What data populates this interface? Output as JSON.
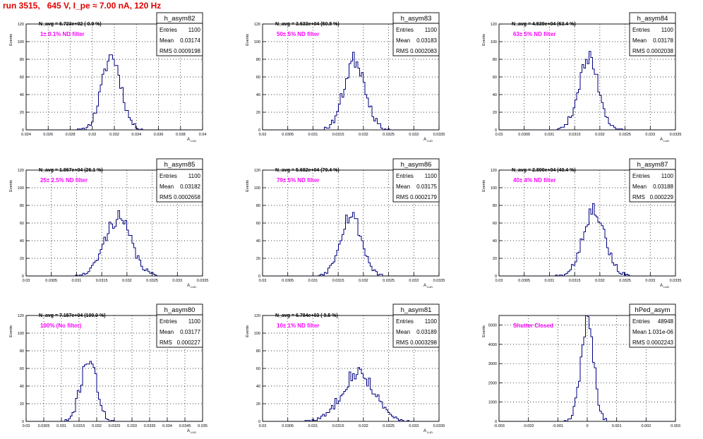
{
  "title": "run 3515,   645 V, I_pe ≈ 7.00 nA, 120 Hz",
  "stats_labels": {
    "entries": "Entries",
    "mean": "Mean",
    "rms": "RMS"
  },
  "colors": {
    "title": "#e00000",
    "annotation": "#ff00ff",
    "histogram": "#000080",
    "frame": "#000000",
    "grid": "#000000"
  },
  "chart_data": [
    {
      "type": "histogram",
      "name": "h_asym82",
      "navg": "N_avg = 6.723e+02 ( 0.9 %)",
      "annotation": "1± 0.1% ND filter",
      "entries": "1100",
      "mean": "0.03174",
      "rms": "0.0009198",
      "ylabel": "Events",
      "xlabel": "A_LUD",
      "xlim": [
        0.024,
        0.04
      ],
      "ylim": [
        0,
        120
      ],
      "xticks": [
        "0.024",
        "0.026",
        "0.028",
        "0.03",
        "0.032",
        "0.034",
        "0.036",
        "0.038",
        "0.04"
      ],
      "yticks": [
        "0",
        "20",
        "40",
        "60",
        "80",
        "100",
        "120"
      ],
      "gauss": {
        "mu": 0.03174,
        "sigma": 0.00087,
        "peak": 84
      },
      "seed": 11,
      "grid": true
    },
    {
      "type": "histogram",
      "name": "h_asym83",
      "navg": "N_avg = 3.633e+04 (50.8 %)",
      "annotation": "50± 5% ND filter",
      "entries": "1100",
      "mean": "0.03183",
      "rms": "0.0002083",
      "ylabel": "Events",
      "xlabel": "A_LUD",
      "xlim": [
        0.03,
        0.0335
      ],
      "ylim": [
        0,
        120
      ],
      "xticks": [
        "0.03",
        "0.0305",
        "0.031",
        "0.0315",
        "0.032",
        "0.0325",
        "0.033",
        "0.0335"
      ],
      "yticks": [
        "0",
        "20",
        "40",
        "60",
        "80",
        "100",
        "120"
      ],
      "gauss": {
        "mu": 0.03183,
        "sigma": 0.00021,
        "peak": 80
      },
      "seed": 23,
      "grid": true
    },
    {
      "type": "histogram",
      "name": "h_asym84",
      "navg": "N_avg = 4.539e+04 (63.4 %)",
      "annotation": "63± 5% ND filter",
      "entries": "1100",
      "mean": "0.03178",
      "rms": "0.0002038",
      "ylabel": "Events",
      "xlabel": "A_LUD",
      "xlim": [
        0.03,
        0.0335
      ],
      "ylim": [
        0,
        120
      ],
      "xticks": [
        "0.03",
        "0.0305",
        "0.031",
        "0.0315",
        "0.032",
        "0.0325",
        "0.033",
        "0.0335"
      ],
      "yticks": [
        "0",
        "20",
        "40",
        "60",
        "80",
        "100",
        "120"
      ],
      "gauss": {
        "mu": 0.03178,
        "sigma": 0.0002,
        "peak": 80
      },
      "seed": 37,
      "grid": true
    },
    {
      "type": "histogram",
      "name": "h_asym85",
      "navg": "N_avg = 1.867e+04 (26.1 %)",
      "annotation": "25± 2.5% ND filter",
      "entries": "1100",
      "mean": "0.03182",
      "rms": "0.0002658",
      "ylabel": "Events",
      "xlabel": "A_LUD",
      "xlim": [
        0.03,
        0.0335
      ],
      "ylim": [
        0,
        120
      ],
      "xticks": [
        "0.03",
        "0.0305",
        "0.031",
        "0.0315",
        "0.032",
        "0.0325",
        "0.033",
        "0.0335"
      ],
      "yticks": [
        "0",
        "20",
        "40",
        "60",
        "80",
        "100",
        "120"
      ],
      "gauss": {
        "mu": 0.03182,
        "sigma": 0.00026,
        "peak": 66
      },
      "seed": 41,
      "grid": true
    },
    {
      "type": "histogram",
      "name": "h_asym86",
      "navg": "N_avg = 5.682e+04 (79.4 %)",
      "annotation": "79± 5% ND filter",
      "entries": "1100",
      "mean": "0.03175",
      "rms": "0.0002179",
      "ylabel": "Events",
      "xlabel": "A_LUD",
      "xlim": [
        0.03,
        0.0335
      ],
      "ylim": [
        0,
        120
      ],
      "xticks": [
        "0.03",
        "0.0305",
        "0.031",
        "0.0315",
        "0.032",
        "0.0325",
        "0.033",
        "0.0335"
      ],
      "yticks": [
        "0",
        "20",
        "40",
        "60",
        "80",
        "100",
        "120"
      ],
      "gauss": {
        "mu": 0.03175,
        "sigma": 0.00021,
        "peak": 70
      },
      "seed": 53,
      "grid": true
    },
    {
      "type": "histogram",
      "name": "h_asym87",
      "navg": "N_avg = 2.890e+04 (40.4 %)",
      "annotation": "40± 4% ND filter",
      "entries": "1100",
      "mean": "0.03188",
      "rms": "0.000229",
      "ylabel": "Events",
      "xlabel": "A_LUD",
      "xlim": [
        0.03,
        0.0335
      ],
      "ylim": [
        0,
        120
      ],
      "xticks": [
        "0.03",
        "0.0305",
        "0.031",
        "0.0315",
        "0.032",
        "0.0325",
        "0.033",
        "0.0335"
      ],
      "yticks": [
        "0",
        "20",
        "40",
        "60",
        "80",
        "100",
        "120"
      ],
      "gauss": {
        "mu": 0.03188,
        "sigma": 0.00022,
        "peak": 76
      },
      "seed": 67,
      "grid": true
    },
    {
      "type": "histogram",
      "name": "h_asym80",
      "navg": "N_avg = 7.157e+04 (100.0 %)",
      "annotation": "100% (No filter)",
      "entries": "1100",
      "mean": "0.03177",
      "rms": "0.000227",
      "ylabel": "Events",
      "xlabel": "A_LUD",
      "xlim": [
        0.03,
        0.035
      ],
      "ylim": [
        0,
        120
      ],
      "xticks": [
        "0.03",
        "0.0305",
        "0.031",
        "0.0315",
        "0.032",
        "0.0325",
        "0.033",
        "0.0335",
        "0.034",
        "0.0345",
        "0.035"
      ],
      "yticks": [
        "0",
        "20",
        "40",
        "60",
        "80",
        "100",
        "120"
      ],
      "gauss": {
        "mu": 0.03177,
        "sigma": 0.00022,
        "peak": 72
      },
      "seed": 71,
      "grid": true
    },
    {
      "type": "histogram",
      "name": "h_asym81",
      "navg": "N_avg = 6.784e+03 ( 9.5 %)",
      "annotation": "10± 1% ND filter",
      "entries": "1100",
      "mean": "0.03189",
      "rms": "0.0003298",
      "ylabel": "Events",
      "xlabel": "A_LUD",
      "xlim": [
        0.03,
        0.0335
      ],
      "ylim": [
        0,
        120
      ],
      "xticks": [
        "0.03",
        "0.0305",
        "0.031",
        "0.0315",
        "0.032",
        "0.0325",
        "0.033",
        "0.0335"
      ],
      "yticks": [
        "0",
        "20",
        "40",
        "60",
        "80",
        "100",
        "120"
      ],
      "gauss": {
        "mu": 0.03189,
        "sigma": 0.00032,
        "peak": 56
      },
      "seed": 83,
      "grid": true
    },
    {
      "type": "histogram",
      "name": "hPed_asym",
      "navg": "",
      "annotation": "Shutter Closed",
      "entries": "48948",
      "mean": "1.031e-06",
      "rms": "0.0002243",
      "ylabel": "Events",
      "xlabel": "",
      "xlim": [
        -0.003,
        0.003
      ],
      "ylim": [
        0,
        5500
      ],
      "xticks": [
        "-0.003",
        "-0.002",
        "-0.001",
        "0",
        "0.001",
        "0.002",
        "0.003"
      ],
      "yticks": [
        "0",
        "1000",
        "2000",
        "3000",
        "4000",
        "5000"
      ],
      "gauss": {
        "mu": 1e-06,
        "sigma": 0.00022,
        "peak": 5150
      },
      "seed": 97,
      "grid": true
    }
  ]
}
